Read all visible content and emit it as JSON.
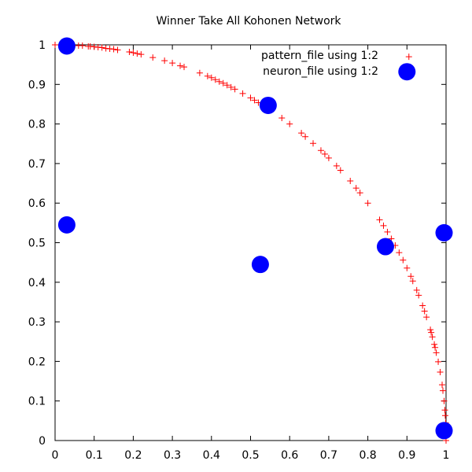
{
  "chart_data": {
    "type": "scatter",
    "title": "Winner Take All Kohonen Network",
    "xlabel": "",
    "ylabel": "",
    "xlim": [
      0,
      1
    ],
    "ylim": [
      0,
      1
    ],
    "x_ticks": [
      "0",
      "0.1",
      "0.2",
      "0.3",
      "0.4",
      "0.5",
      "0.6",
      "0.7",
      "0.8",
      "0.9",
      "1"
    ],
    "y_ticks": [
      "0",
      "0.1",
      "0.2",
      "0.3",
      "0.4",
      "0.5",
      "0.6",
      "0.7",
      "0.8",
      "0.9",
      "1"
    ],
    "grid": false,
    "legend_position": "top-right",
    "series": [
      {
        "name": "pattern_file using 1:2",
        "marker": "plus",
        "color": "#ff0000",
        "points": [
          [
            0.0,
            1.0
          ],
          [
            0.045,
            0.999
          ],
          [
            0.06,
            0.998
          ],
          [
            0.07,
            0.998
          ],
          [
            0.085,
            0.996
          ],
          [
            0.09,
            0.996
          ],
          [
            0.1,
            0.995
          ],
          [
            0.11,
            0.994
          ],
          [
            0.12,
            0.993
          ],
          [
            0.13,
            0.991
          ],
          [
            0.14,
            0.99
          ],
          [
            0.15,
            0.989
          ],
          [
            0.16,
            0.987
          ],
          [
            0.19,
            0.982
          ],
          [
            0.2,
            0.98
          ],
          [
            0.21,
            0.978
          ],
          [
            0.22,
            0.976
          ],
          [
            0.25,
            0.968
          ],
          [
            0.28,
            0.96
          ],
          [
            0.3,
            0.954
          ],
          [
            0.32,
            0.947
          ],
          [
            0.33,
            0.944
          ],
          [
            0.37,
            0.929
          ],
          [
            0.39,
            0.921
          ],
          [
            0.4,
            0.917
          ],
          [
            0.41,
            0.912
          ],
          [
            0.42,
            0.907
          ],
          [
            0.43,
            0.903
          ],
          [
            0.44,
            0.898
          ],
          [
            0.45,
            0.893
          ],
          [
            0.46,
            0.888
          ],
          [
            0.48,
            0.877
          ],
          [
            0.5,
            0.866
          ],
          [
            0.51,
            0.86
          ],
          [
            0.52,
            0.854
          ],
          [
            0.58,
            0.815
          ],
          [
            0.6,
            0.8
          ],
          [
            0.63,
            0.777
          ],
          [
            0.64,
            0.768
          ],
          [
            0.66,
            0.751
          ],
          [
            0.68,
            0.733
          ],
          [
            0.69,
            0.724
          ],
          [
            0.7,
            0.714
          ],
          [
            0.72,
            0.694
          ],
          [
            0.73,
            0.683
          ],
          [
            0.755,
            0.656
          ],
          [
            0.77,
            0.638
          ],
          [
            0.78,
            0.626
          ],
          [
            0.8,
            0.6
          ],
          [
            0.83,
            0.558
          ],
          [
            0.84,
            0.543
          ],
          [
            0.85,
            0.527
          ],
          [
            0.86,
            0.51
          ],
          [
            0.87,
            0.493
          ],
          [
            0.88,
            0.475
          ],
          [
            0.89,
            0.456
          ],
          [
            0.9,
            0.436
          ],
          [
            0.91,
            0.415
          ],
          [
            0.915,
            0.403
          ],
          [
            0.925,
            0.38
          ],
          [
            0.93,
            0.367
          ],
          [
            0.94,
            0.341
          ],
          [
            0.945,
            0.327
          ],
          [
            0.95,
            0.312
          ],
          [
            0.96,
            0.28
          ],
          [
            0.962,
            0.273
          ],
          [
            0.965,
            0.262
          ],
          [
            0.97,
            0.243
          ],
          [
            0.972,
            0.235
          ],
          [
            0.975,
            0.222
          ],
          [
            0.98,
            0.199
          ],
          [
            0.985,
            0.173
          ],
          [
            0.99,
            0.141
          ],
          [
            0.992,
            0.126
          ],
          [
            0.995,
            0.1
          ],
          [
            0.997,
            0.077
          ],
          [
            0.998,
            0.063
          ],
          [
            0.999,
            0.045
          ],
          [
            1.0,
            0.02
          ],
          [
            1.0,
            0.0
          ],
          [
            0.905,
            0.97
          ]
        ]
      },
      {
        "name": "neuron_file using 1:2",
        "marker": "circle",
        "color": "#0000ff",
        "points": [
          [
            0.03,
            0.997
          ],
          [
            0.545,
            0.847
          ],
          [
            0.9,
            0.932
          ],
          [
            0.03,
            0.545
          ],
          [
            0.525,
            0.445
          ],
          [
            0.845,
            0.49
          ],
          [
            0.995,
            0.525
          ],
          [
            0.995,
            0.025
          ]
        ]
      }
    ]
  }
}
